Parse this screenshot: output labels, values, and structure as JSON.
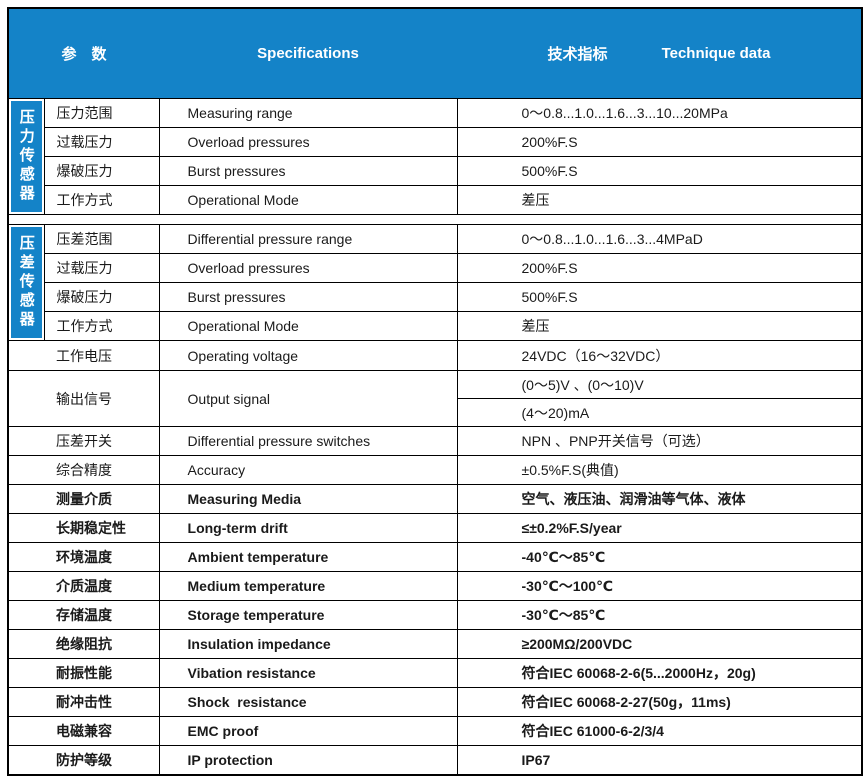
{
  "colors": {
    "accent_blue": "#1483c8",
    "border": "#000000",
    "header_text": "#ffffff"
  },
  "header": {
    "col_params": "参　数",
    "col_specs": "Specifications",
    "col_tech_cn": "技术指标",
    "col_tech_en": "Technique data"
  },
  "sections": {
    "pressure_sensor": "压力传感器",
    "diff_pressure_sensor": "压差传感器"
  },
  "rows": {
    "p1": {
      "label": "压力范围",
      "spec": "Measuring range",
      "value": "0～0.8...1.0...1.6...3...10...20MPa"
    },
    "p2": {
      "label": "过载压力",
      "spec": "Overload pressures",
      "value": "200%F.S"
    },
    "p3": {
      "label": "爆破压力",
      "spec": "Burst pressures",
      "value": "500%F.S"
    },
    "p4": {
      "label": "工作方式",
      "spec": "Operational Mode",
      "value": "差压"
    },
    "d1": {
      "label": "压差范围",
      "spec": "Differential pressure range",
      "value": "0～0.8...1.0...1.6...3...4MPaD"
    },
    "d2": {
      "label": "过载压力",
      "spec": "Overload pressures",
      "value": "200%F.S"
    },
    "d3": {
      "label": "爆破压力",
      "spec": "Burst pressures",
      "value": "500%F.S"
    },
    "d4": {
      "label": "工作方式",
      "spec": "Operational Mode",
      "value": "差压"
    },
    "voltage": {
      "label": "工作电压",
      "spec": "Operating voltage",
      "value": "24VDC（16～32VDC）"
    },
    "output": {
      "label": "输出信号",
      "spec": "Output signal",
      "value1": "(0～5)V 、(0～10)V",
      "value2": "(4～20)mA"
    },
    "switch": {
      "label": "压差开关",
      "spec": "Differential pressure switches",
      "value": "NPN 、PNP开关信号（可选）"
    },
    "accuracy": {
      "label": "综合精度",
      "spec": "Accuracy",
      "value": "±0.5%F.S(典值)"
    },
    "media": {
      "label": "测量介质",
      "spec": "Measuring Media",
      "value": "空气、液压油、润滑油等气体、液体"
    },
    "drift": {
      "label": "长期稳定性",
      "spec": "Long-term drift",
      "value": "≤±0.2%F.S/year"
    },
    "ambient": {
      "label": "环境温度",
      "spec": "Ambient temperature",
      "value": "-40℃～85℃"
    },
    "medium": {
      "label": "介质温度",
      "spec": "Medium temperature",
      "value": "-30℃～100℃"
    },
    "storage": {
      "label": "存储温度",
      "spec": "Storage temperature",
      "value": "-30℃～85℃"
    },
    "insulation": {
      "label": "绝缘阻抗",
      "spec": "Insulation impedance",
      "value": "≥200MΩ/200VDC"
    },
    "vibration": {
      "label": "耐振性能",
      "spec": "Vibation resistance",
      "value": "符合IEC 60068-2-6(5...2000Hz，20g)"
    },
    "shock": {
      "label": "耐冲击性",
      "spec": "Shock  resistance",
      "value": "符合IEC 60068-2-27(50g，11ms)"
    },
    "emc": {
      "label": "电磁兼容",
      "spec": "EMC proof",
      "value": "符合IEC 61000-6-2/3/4"
    },
    "ip": {
      "label": "防护等级",
      "spec": "IP protection",
      "value": "IP67"
    }
  }
}
